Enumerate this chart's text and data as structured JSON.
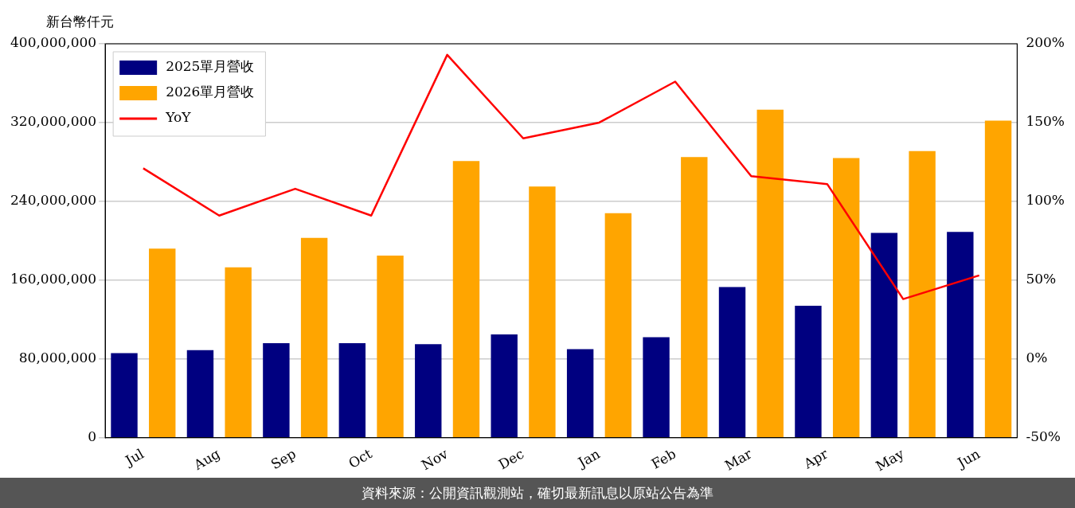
{
  "chart_data": {
    "type": "bar",
    "ylabel": "新台幣仟元",
    "categories": [
      "Jul",
      "Aug",
      "Sep",
      "Oct",
      "Nov",
      "Dec",
      "Jan",
      "Feb",
      "Mar",
      "Apr",
      "May",
      "Jun"
    ],
    "series": [
      {
        "name": "2025單月營收",
        "color": "#000080",
        "values": [
          86000000,
          89000000,
          96000000,
          96000000,
          95000000,
          105000000,
          90000000,
          102000000,
          153000000,
          134000000,
          208000000,
          209000000
        ]
      },
      {
        "name": "2026單月營收",
        "color": "#ffa500",
        "values": [
          192000000,
          173000000,
          203000000,
          185000000,
          281000000,
          255000000,
          228000000,
          285000000,
          333000000,
          284000000,
          291000000,
          322000000
        ]
      },
      {
        "name": "YoY",
        "type": "line",
        "axis": "y2",
        "color": "#ff0000",
        "marker": "none",
        "line_style": "solid",
        "values": [
          121,
          91,
          108,
          91,
          193,
          140,
          150,
          176,
          116,
          111,
          38,
          53
        ]
      }
    ],
    "ylim": [
      0,
      400000000
    ],
    "yticks": [
      {
        "value": 0,
        "label": "0"
      },
      {
        "value": 80000000,
        "label": "80,000,000"
      },
      {
        "value": 160000000,
        "label": "160,000,000"
      },
      {
        "value": 240000000,
        "label": "240,000,000"
      },
      {
        "value": 320000000,
        "label": "320,000,000"
      },
      {
        "value": 400000000,
        "label": "400,000,000"
      }
    ],
    "y2lim": [
      -50,
      200
    ],
    "y2ticks": [
      {
        "value": -50,
        "label": "-50%"
      },
      {
        "value": 0,
        "label": "0%"
      },
      {
        "value": 50,
        "label": "50%"
      },
      {
        "value": 100,
        "label": "100%"
      },
      {
        "value": 150,
        "label": "150%"
      },
      {
        "value": 200,
        "label": "200%"
      }
    ],
    "grid": "y",
    "legend": "top left",
    "annotations": [
      "資料來源：公開資訊觀測站，確切最新訊息以原站公告為準"
    ]
  }
}
